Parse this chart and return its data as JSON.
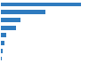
{
  "values": [
    1700000,
    950000,
    420000,
    330000,
    110000,
    75000,
    42000,
    18000
  ],
  "bar_color": "#2f7bbf",
  "background_color": "#ffffff",
  "grid_color": "#e0e0e0",
  "xlim": [
    0,
    1850000
  ],
  "bar_height": 0.55
}
